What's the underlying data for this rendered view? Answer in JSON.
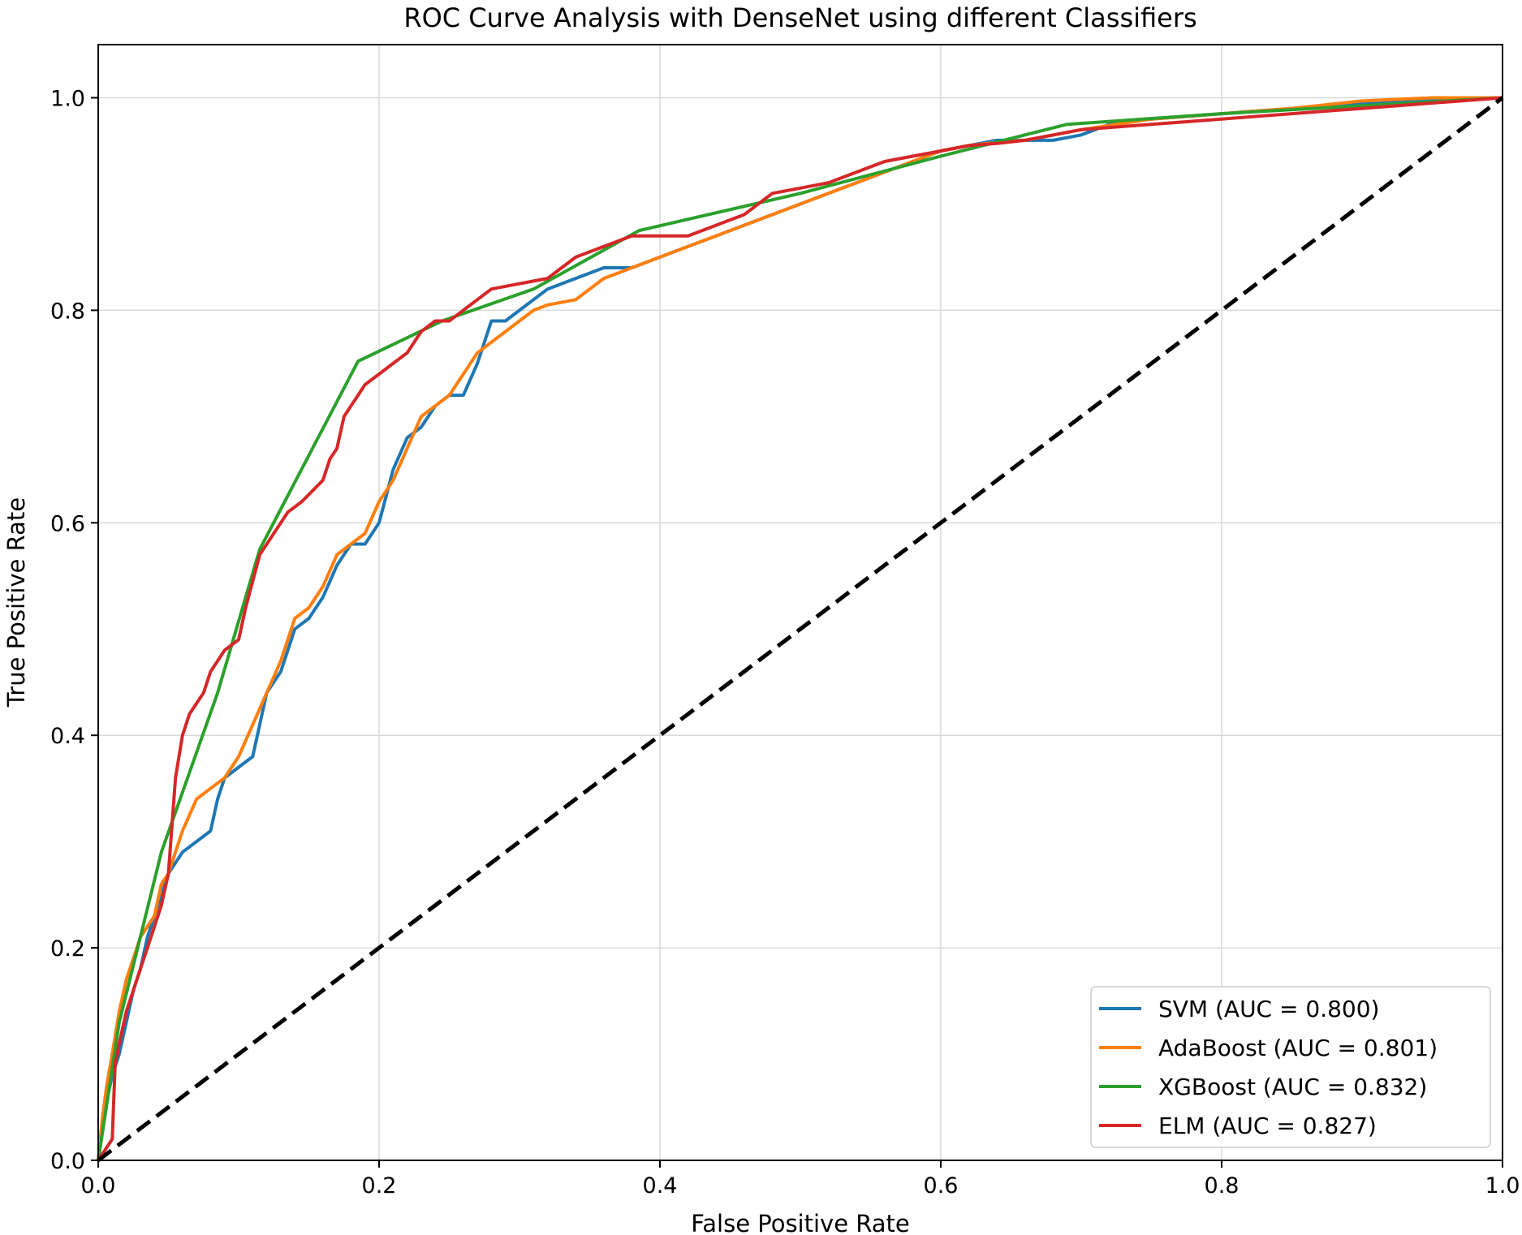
{
  "chart_data": {
    "type": "line",
    "title": "ROC Curve Analysis with DenseNet using different Classifiers",
    "xlabel": "False Positive Rate",
    "ylabel": "True Positive Rate",
    "xlim": [
      0.0,
      1.0
    ],
    "ylim": [
      0.0,
      1.05
    ],
    "xticks": [
      "0.0",
      "0.2",
      "0.4",
      "0.6",
      "0.8",
      "1.0"
    ],
    "yticks": [
      "0.0",
      "0.2",
      "0.4",
      "0.6",
      "0.8",
      "1.0"
    ],
    "grid": true,
    "legend_position": "lower-right",
    "series": [
      {
        "name": "SVM",
        "label": "SVM (AUC = 0.800)",
        "color": "#1f77b4",
        "x": [
          0.0,
          0.003,
          0.005,
          0.01,
          0.015,
          0.02,
          0.025,
          0.03,
          0.035,
          0.04,
          0.045,
          0.05,
          0.055,
          0.06,
          0.07,
          0.08,
          0.085,
          0.09,
          0.1,
          0.11,
          0.12,
          0.13,
          0.14,
          0.15,
          0.16,
          0.17,
          0.18,
          0.19,
          0.2,
          0.21,
          0.22,
          0.23,
          0.24,
          0.25,
          0.26,
          0.27,
          0.28,
          0.29,
          0.3,
          0.32,
          0.34,
          0.36,
          0.38,
          0.4,
          0.42,
          0.44,
          0.46,
          0.48,
          0.5,
          0.52,
          0.54,
          0.56,
          0.58,
          0.6,
          0.62,
          0.64,
          0.66,
          0.68,
          0.7,
          0.72,
          0.75,
          0.8,
          0.85,
          0.9,
          0.95,
          1.0
        ],
        "y": [
          0.0,
          0.03,
          0.05,
          0.08,
          0.1,
          0.13,
          0.16,
          0.18,
          0.21,
          0.23,
          0.25,
          0.27,
          0.28,
          0.29,
          0.3,
          0.31,
          0.34,
          0.36,
          0.37,
          0.38,
          0.44,
          0.46,
          0.5,
          0.51,
          0.53,
          0.56,
          0.58,
          0.58,
          0.6,
          0.65,
          0.68,
          0.69,
          0.71,
          0.72,
          0.72,
          0.75,
          0.79,
          0.79,
          0.8,
          0.82,
          0.83,
          0.84,
          0.84,
          0.85,
          0.86,
          0.87,
          0.88,
          0.89,
          0.9,
          0.91,
          0.92,
          0.93,
          0.94,
          0.95,
          0.955,
          0.96,
          0.96,
          0.96,
          0.965,
          0.975,
          0.98,
          0.985,
          0.99,
          0.995,
          0.998,
          1.0
        ]
      },
      {
        "name": "AdaBoost",
        "label": "AdaBoost (AUC = 0.801)",
        "color": "#ff7f0e",
        "x": [
          0.0,
          0.003,
          0.006,
          0.01,
          0.015,
          0.02,
          0.025,
          0.03,
          0.035,
          0.04,
          0.045,
          0.05,
          0.06,
          0.07,
          0.08,
          0.09,
          0.1,
          0.11,
          0.12,
          0.13,
          0.14,
          0.15,
          0.16,
          0.17,
          0.18,
          0.19,
          0.2,
          0.21,
          0.22,
          0.23,
          0.24,
          0.25,
          0.26,
          0.27,
          0.28,
          0.29,
          0.3,
          0.31,
          0.32,
          0.34,
          0.36,
          0.38,
          0.4,
          0.42,
          0.44,
          0.46,
          0.48,
          0.5,
          0.52,
          0.54,
          0.56,
          0.58,
          0.6,
          0.62,
          0.64,
          0.66,
          0.7,
          0.75,
          0.8,
          0.85,
          0.9,
          0.95,
          1.0
        ],
        "y": [
          0.0,
          0.04,
          0.07,
          0.1,
          0.14,
          0.17,
          0.19,
          0.21,
          0.22,
          0.23,
          0.26,
          0.27,
          0.31,
          0.34,
          0.35,
          0.36,
          0.38,
          0.41,
          0.44,
          0.47,
          0.51,
          0.52,
          0.54,
          0.57,
          0.58,
          0.59,
          0.62,
          0.64,
          0.67,
          0.7,
          0.71,
          0.72,
          0.74,
          0.76,
          0.77,
          0.78,
          0.79,
          0.8,
          0.805,
          0.81,
          0.83,
          0.84,
          0.85,
          0.86,
          0.87,
          0.88,
          0.89,
          0.9,
          0.91,
          0.92,
          0.93,
          0.94,
          0.95,
          0.955,
          0.958,
          0.96,
          0.97,
          0.98,
          0.985,
          0.99,
          0.997,
          1.0,
          1.0
        ]
      },
      {
        "name": "XGBoost",
        "label": "XGBoost (AUC = 0.832)",
        "color": "#2ca02c",
        "x": [
          0.0,
          0.015,
          0.045,
          0.085,
          0.115,
          0.185,
          0.245,
          0.31,
          0.385,
          0.5,
          0.6,
          0.69,
          0.8,
          1.0
        ],
        "y": [
          0.0,
          0.13,
          0.29,
          0.44,
          0.575,
          0.752,
          0.79,
          0.82,
          0.875,
          0.91,
          0.945,
          0.975,
          0.985,
          1.0
        ]
      },
      {
        "name": "ELM",
        "label": "ELM (AUC = 0.827)",
        "color": "#d62728",
        "x": [
          0.0,
          0.01,
          0.012,
          0.015,
          0.02,
          0.025,
          0.03,
          0.035,
          0.04,
          0.045,
          0.05,
          0.055,
          0.06,
          0.065,
          0.07,
          0.075,
          0.08,
          0.085,
          0.09,
          0.1,
          0.105,
          0.115,
          0.125,
          0.135,
          0.145,
          0.16,
          0.165,
          0.17,
          0.175,
          0.18,
          0.185,
          0.19,
          0.2,
          0.21,
          0.22,
          0.23,
          0.24,
          0.25,
          0.26,
          0.28,
          0.3,
          0.32,
          0.34,
          0.36,
          0.38,
          0.42,
          0.44,
          0.46,
          0.48,
          0.5,
          0.52,
          0.54,
          0.56,
          0.58,
          0.6,
          0.62,
          0.64,
          0.66,
          0.7,
          0.75,
          0.8,
          0.85,
          0.9,
          0.95,
          1.0
        ],
        "y": [
          0.0,
          0.02,
          0.09,
          0.11,
          0.14,
          0.16,
          0.18,
          0.2,
          0.22,
          0.24,
          0.27,
          0.36,
          0.4,
          0.42,
          0.43,
          0.44,
          0.46,
          0.47,
          0.48,
          0.49,
          0.52,
          0.57,
          0.59,
          0.61,
          0.62,
          0.64,
          0.66,
          0.67,
          0.7,
          0.71,
          0.72,
          0.73,
          0.74,
          0.75,
          0.76,
          0.78,
          0.79,
          0.79,
          0.8,
          0.82,
          0.825,
          0.83,
          0.85,
          0.86,
          0.87,
          0.87,
          0.88,
          0.89,
          0.91,
          0.915,
          0.92,
          0.93,
          0.94,
          0.945,
          0.95,
          0.955,
          0.957,
          0.96,
          0.97,
          0.975,
          0.98,
          0.985,
          0.99,
          0.995,
          1.0
        ]
      }
    ],
    "reference_line": {
      "name": "chance",
      "x": [
        0.0,
        1.0
      ],
      "y": [
        0.0,
        1.0
      ],
      "color": "#000000",
      "style": "dashed"
    }
  }
}
